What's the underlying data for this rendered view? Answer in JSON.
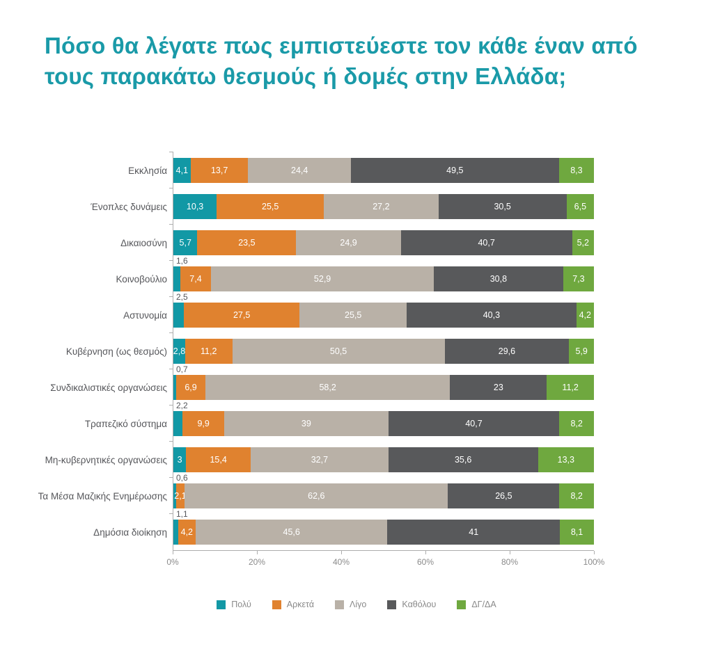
{
  "chart_data": {
    "type": "bar",
    "variant": "horizontal-stacked",
    "title": "Πόσο θα λέγατε πως εμπιστεύεστε τον κάθε έναν από τους παρακάτω θεσμούς ή δομές στην Ελλάδα;",
    "xlabel": "",
    "ylabel": "",
    "xlim": [
      0,
      100
    ],
    "x_ticks": [
      "0%",
      "20%",
      "40%",
      "60%",
      "80%",
      "100%"
    ],
    "legend_position": "bottom",
    "series": [
      {
        "name": "Πολύ",
        "color": "#1298A5"
      },
      {
        "name": "Αρκετά",
        "color": "#E0822F"
      },
      {
        "name": "Λίγο",
        "color": "#B9B1A7"
      },
      {
        "name": "Καθόλου",
        "color": "#58595B"
      },
      {
        "name": "ΔΓ/ΔΑ",
        "color": "#6FA83F"
      }
    ],
    "rows": [
      {
        "label": "Εκκλησία",
        "values": [
          4.1,
          13.7,
          24.4,
          49.5,
          8.3
        ],
        "labels": [
          "4,1",
          "13,7",
          "24,4",
          "49,5",
          "8,3"
        ],
        "callout": false
      },
      {
        "label": "Ένοπλες δυνάμεις",
        "values": [
          10.3,
          25.5,
          27.2,
          30.5,
          6.5
        ],
        "labels": [
          "10,3",
          "25,5",
          "27,2",
          "30,5",
          "6,5"
        ],
        "callout": false
      },
      {
        "label": "Δικαιοσύνη",
        "values": [
          5.7,
          23.5,
          24.9,
          40.7,
          5.2
        ],
        "labels": [
          "5,7",
          "23,5",
          "24,9",
          "40,7",
          "5,2"
        ],
        "callout": false
      },
      {
        "label": "Κοινοβούλιο",
        "values": [
          1.6,
          7.4,
          52.9,
          30.8,
          7.3
        ],
        "labels": [
          "1,6",
          "7,4",
          "52,9",
          "30,8",
          "7,3"
        ],
        "callout": true
      },
      {
        "label": "Αστυνομία",
        "values": [
          2.5,
          27.5,
          25.5,
          40.3,
          4.2
        ],
        "labels": [
          "2,5",
          "27,5",
          "25,5",
          "40,3",
          "4,2"
        ],
        "callout": true
      },
      {
        "label": "Κυβέρνηση (ως θεσμός)",
        "values": [
          2.8,
          11.2,
          50.5,
          29.6,
          5.9
        ],
        "labels": [
          "2,8",
          "11,2",
          "50,5",
          "29,6",
          "5,9"
        ],
        "callout": false
      },
      {
        "label": "Συνδικαλιστικές οργανώσεις",
        "values": [
          0.7,
          6.9,
          58.2,
          23,
          11.2
        ],
        "labels": [
          "0,7",
          "6,9",
          "58,2",
          "23",
          "11,2"
        ],
        "callout": true
      },
      {
        "label": "Τραπεζικό σύστημα",
        "values": [
          2.2,
          9.9,
          39,
          40.7,
          8.2
        ],
        "labels": [
          "2,2",
          "9,9",
          "39",
          "40,7",
          "8,2"
        ],
        "callout": true
      },
      {
        "label": "Μη-κυβερνητικές οργανώσεις",
        "values": [
          3,
          15.4,
          32.7,
          35.6,
          13.3
        ],
        "labels": [
          "3",
          "15,4",
          "32,7",
          "35,6",
          "13,3"
        ],
        "callout": false
      },
      {
        "label": "Τα Μέσα Μαζικής Ενημέρωσης",
        "values": [
          0.6,
          2.1,
          62.6,
          26.5,
          8.2
        ],
        "labels": [
          "0,6",
          "2,1",
          "62,6",
          "26,5",
          "8,2"
        ],
        "callout": true
      },
      {
        "label": "Δημόσια διοίκηση",
        "values": [
          1.1,
          4.2,
          45.6,
          41,
          8.1
        ],
        "labels": [
          "1,1",
          "4,2",
          "45,6",
          "41",
          "8,1"
        ],
        "callout": true
      }
    ]
  }
}
